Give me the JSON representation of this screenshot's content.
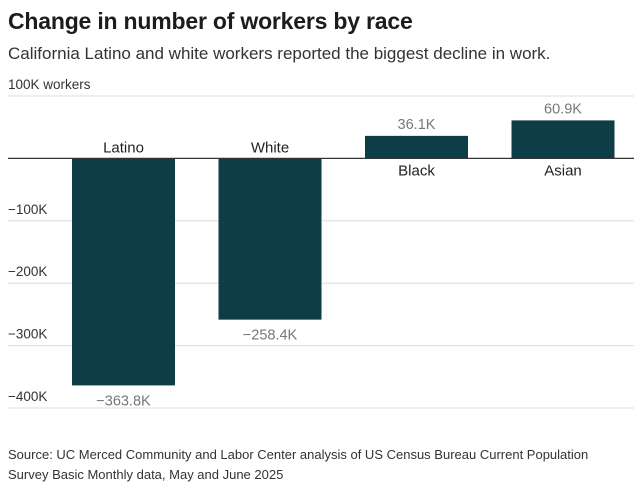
{
  "title": "Change in number of workers by race",
  "subtitle": "California Latino and white workers reported the biggest decline in work.",
  "source": "Source: UC Merced Community and Labor Center analysis of US Census Bureau Current Population Survey Basic Monthly data, May and June 2025",
  "colors": {
    "bar": "#0d3d47",
    "grid": "#dcdcdc",
    "zero_line": "#333333",
    "tick_text": "#333333",
    "value_label": "#777777",
    "category_label": "#222222"
  },
  "chart_data": {
    "type": "bar",
    "title": "Change in number of workers by race",
    "xlabel": "",
    "ylabel": "",
    "categories": [
      "Latino",
      "White",
      "Black",
      "Asian"
    ],
    "values": [
      -363800,
      -258400,
      36100,
      60900
    ],
    "value_labels": [
      "−363.8K",
      "−258.4K",
      "36.1K",
      "60.9K"
    ],
    "ylim": [
      -400000,
      100000
    ],
    "yticks": [
      100000,
      -100000,
      -200000,
      -300000,
      -400000
    ],
    "ytick_labels": [
      "100K workers",
      "−100K",
      "−200K",
      "−300K",
      "−400K"
    ],
    "grid": true,
    "legend": "none"
  }
}
